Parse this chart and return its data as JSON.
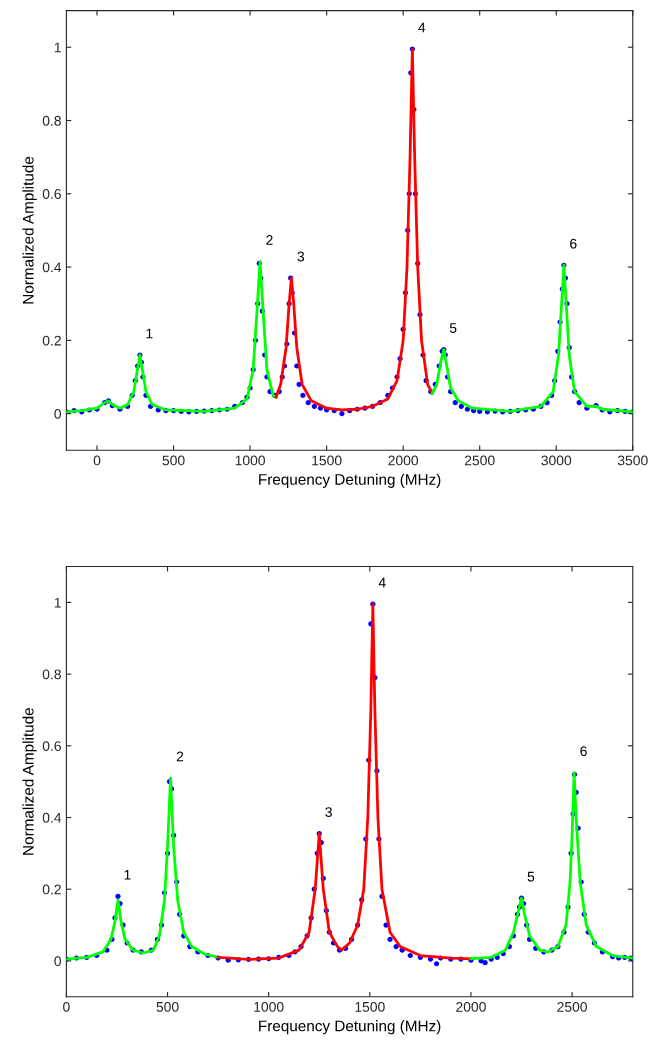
{
  "chart_data": [
    {
      "type": "line",
      "xlabel": "Frequency Detuning (MHz)",
      "ylabel": "Normalized Amplitude",
      "xlim": [
        -200,
        3500
      ],
      "ylim": [
        -0.1,
        1.1
      ],
      "xticks": [
        0,
        500,
        1000,
        1500,
        2000,
        2500,
        3000,
        3500
      ],
      "yticks": [
        0,
        0.2,
        0.4,
        0.6,
        0.8,
        1
      ],
      "grid": false,
      "legend": false,
      "series": [
        {
          "type": "scatter",
          "color": "#0000ff",
          "marker": "circle",
          "x": [
            -200,
            -150,
            -100,
            -50,
            0,
            50,
            75,
            100,
            150,
            200,
            230,
            250,
            265,
            280,
            290,
            300,
            320,
            350,
            400,
            450,
            500,
            550,
            600,
            650,
            700,
            750,
            800,
            850,
            900,
            950,
            980,
            1000,
            1020,
            1035,
            1050,
            1060,
            1070,
            1080,
            1095,
            1110,
            1130,
            1160,
            1190,
            1210,
            1225,
            1240,
            1255,
            1265,
            1275,
            1290,
            1305,
            1320,
            1345,
            1380,
            1420,
            1460,
            1500,
            1550,
            1600,
            1650,
            1700,
            1750,
            1800,
            1850,
            1900,
            1930,
            1960,
            1980,
            2000,
            2015,
            2030,
            2040,
            2050,
            2060,
            2070,
            2080,
            2095,
            2110,
            2130,
            2150,
            2180,
            2210,
            2235,
            2255,
            2265,
            2275,
            2290,
            2310,
            2340,
            2380,
            2420,
            2460,
            2500,
            2550,
            2600,
            2650,
            2700,
            2750,
            2800,
            2850,
            2900,
            2940,
            2970,
            2990,
            3010,
            3025,
            3040,
            3050,
            3060,
            3070,
            3085,
            3100,
            3120,
            3150,
            3200,
            3260,
            3300,
            3350,
            3400,
            3450,
            3500
          ],
          "values": [
            0.005,
            0.008,
            0.005,
            0.01,
            0.012,
            0.03,
            0.035,
            0.022,
            0.012,
            0.02,
            0.05,
            0.09,
            0.13,
            0.16,
            0.14,
            0.1,
            0.05,
            0.02,
            0.01,
            0.008,
            0.008,
            0.006,
            0.005,
            0.006,
            0.007,
            0.008,
            0.01,
            0.012,
            0.02,
            0.03,
            0.045,
            0.07,
            0.12,
            0.2,
            0.3,
            0.41,
            0.37,
            0.28,
            0.16,
            0.1,
            0.06,
            0.05,
            0.06,
            0.1,
            0.13,
            0.19,
            0.3,
            0.37,
            0.33,
            0.22,
            0.13,
            0.08,
            0.05,
            0.03,
            0.02,
            0.015,
            0.01,
            0.008,
            0.0,
            0.008,
            0.012,
            0.015,
            0.02,
            0.03,
            0.05,
            0.07,
            0.1,
            0.15,
            0.23,
            0.33,
            0.5,
            0.6,
            0.93,
            0.995,
            0.83,
            0.6,
            0.41,
            0.27,
            0.16,
            0.09,
            0.06,
            0.08,
            0.13,
            0.17,
            0.175,
            0.16,
            0.1,
            0.06,
            0.03,
            0.02,
            0.012,
            0.008,
            0.006,
            0.005,
            0.007,
            0.005,
            0.006,
            0.008,
            0.01,
            0.012,
            0.02,
            0.03,
            0.05,
            0.09,
            0.17,
            0.25,
            0.34,
            0.405,
            0.37,
            0.3,
            0.18,
            0.1,
            0.06,
            0.03,
            0.015,
            0.022,
            0.01,
            0.005,
            0.008,
            0.006,
            0.005
          ]
        },
        {
          "color": "#00ff00",
          "x": [
            -200,
            -100,
            0,
            50,
            75,
            100,
            150,
            200,
            240,
            260,
            280,
            300,
            320,
            360,
            450,
            700,
            900,
            980,
            1020,
            1045,
            1065,
            1085,
            1110,
            1150,
            1170
          ],
          "values": [
            0.005,
            0.008,
            0.015,
            0.03,
            0.035,
            0.025,
            0.015,
            0.025,
            0.06,
            0.11,
            0.16,
            0.11,
            0.06,
            0.025,
            0.01,
            0.006,
            0.015,
            0.04,
            0.12,
            0.28,
            0.415,
            0.28,
            0.12,
            0.05,
            0.045
          ]
        },
        {
          "color": "#ff0000",
          "x": [
            1170,
            1200,
            1235,
            1255,
            1270,
            1285,
            1305,
            1340,
            1400,
            1500,
            1600,
            1700,
            1800,
            1900,
            1960,
            2000,
            2025,
            2045,
            2060,
            2075,
            2095,
            2120,
            2160,
            2190
          ],
          "values": [
            0.045,
            0.08,
            0.18,
            0.3,
            0.37,
            0.3,
            0.18,
            0.08,
            0.035,
            0.015,
            0.01,
            0.012,
            0.02,
            0.04,
            0.09,
            0.2,
            0.4,
            0.7,
            0.995,
            0.7,
            0.4,
            0.2,
            0.08,
            0.055
          ]
        },
        {
          "color": "#00ff00",
          "x": [
            2190,
            2220,
            2245,
            2265,
            2285,
            2310,
            2360,
            2450,
            2700,
            2900,
            2980,
            3015,
            3035,
            3050,
            3065,
            3085,
            3120,
            3200,
            3260,
            3300,
            3500
          ],
          "values": [
            0.055,
            0.08,
            0.14,
            0.175,
            0.13,
            0.07,
            0.035,
            0.015,
            0.006,
            0.02,
            0.06,
            0.16,
            0.3,
            0.405,
            0.3,
            0.16,
            0.06,
            0.02,
            0.02,
            0.012,
            0.005
          ]
        }
      ],
      "annotations": [
        {
          "text": "1",
          "x": 280,
          "y": 0.16
        },
        {
          "text": "2",
          "x": 1065,
          "y": 0.415
        },
        {
          "text": "3",
          "x": 1270,
          "y": 0.37
        },
        {
          "text": "4",
          "x": 2060,
          "y": 0.995
        },
        {
          "text": "5",
          "x": 2265,
          "y": 0.175
        },
        {
          "text": "6",
          "x": 3050,
          "y": 0.405
        }
      ]
    },
    {
      "type": "line",
      "xlabel": "Frequency Detuning (MHz)",
      "ylabel": "Normalized Amplitude",
      "xlim": [
        0,
        2800
      ],
      "ylim": [
        -0.1,
        1.1
      ],
      "xticks": [
        0,
        500,
        1000,
        1500,
        2000,
        2500
      ],
      "yticks": [
        0,
        0.2,
        0.4,
        0.6,
        0.8,
        1
      ],
      "grid": false,
      "legend": false,
      "series": [
        {
          "type": "scatter",
          "color": "#0000ff",
          "marker": "circle",
          "x": [
            0,
            50,
            100,
            150,
            200,
            225,
            240,
            255,
            265,
            280,
            300,
            330,
            370,
            420,
            450,
            470,
            485,
            500,
            510,
            520,
            530,
            545,
            560,
            580,
            610,
            650,
            700,
            750,
            800,
            850,
            900,
            950,
            1000,
            1050,
            1100,
            1130,
            1160,
            1190,
            1210,
            1225,
            1240,
            1250,
            1260,
            1270,
            1285,
            1300,
            1320,
            1350,
            1380,
            1410,
            1440,
            1460,
            1480,
            1495,
            1505,
            1515,
            1525,
            1535,
            1545,
            1560,
            1580,
            1600,
            1630,
            1660,
            1700,
            1750,
            1800,
            1830,
            1850,
            1900,
            1950,
            2000,
            2050,
            2070,
            2100,
            2130,
            2160,
            2190,
            2210,
            2230,
            2240,
            2250,
            2260,
            2275,
            2290,
            2320,
            2360,
            2400,
            2430,
            2460,
            2480,
            2495,
            2505,
            2512,
            2520,
            2530,
            2545,
            2560,
            2580,
            2610,
            2650,
            2700,
            2730,
            2760,
            2790,
            2800
          ],
          "values": [
            0.005,
            0.008,
            0.01,
            0.015,
            0.03,
            0.06,
            0.12,
            0.18,
            0.16,
            0.1,
            0.05,
            0.03,
            0.025,
            0.03,
            0.06,
            0.1,
            0.19,
            0.3,
            0.5,
            0.48,
            0.35,
            0.22,
            0.13,
            0.07,
            0.04,
            0.025,
            0.015,
            0.008,
            0.002,
            0.003,
            0.004,
            0.005,
            0.006,
            0.01,
            0.015,
            0.025,
            0.04,
            0.07,
            0.12,
            0.2,
            0.3,
            0.355,
            0.33,
            0.23,
            0.14,
            0.08,
            0.05,
            0.03,
            0.035,
            0.06,
            0.1,
            0.17,
            0.34,
            0.56,
            0.94,
            0.995,
            0.79,
            0.53,
            0.34,
            0.18,
            0.1,
            0.06,
            0.04,
            0.03,
            0.015,
            0.01,
            0.005,
            -0.008,
            0.008,
            0.005,
            0.005,
            0.002,
            0.0,
            -0.005,
            0.005,
            0.01,
            0.02,
            0.04,
            0.07,
            0.13,
            0.15,
            0.175,
            0.16,
            0.1,
            0.06,
            0.035,
            0.025,
            0.03,
            0.04,
            0.08,
            0.15,
            0.3,
            0.41,
            0.52,
            0.47,
            0.37,
            0.22,
            0.13,
            0.08,
            0.05,
            0.025,
            0.012,
            0.008,
            0.01,
            0.008,
            0.005
          ]
        },
        {
          "color": "#00ff00",
          "x": [
            0,
            100,
            180,
            220,
            240,
            255,
            270,
            290,
            330,
            380,
            430,
            460,
            485,
            500,
            515,
            530,
            550,
            580,
            620,
            680,
            750
          ],
          "values": [
            0.005,
            0.01,
            0.025,
            0.06,
            0.11,
            0.17,
            0.11,
            0.06,
            0.03,
            0.022,
            0.03,
            0.07,
            0.17,
            0.32,
            0.51,
            0.32,
            0.17,
            0.08,
            0.04,
            0.02,
            0.01
          ]
        },
        {
          "color": "#ff0000",
          "x": [
            750,
            900,
            1050,
            1150,
            1200,
            1230,
            1250,
            1270,
            1300,
            1340,
            1360,
            1400,
            1440,
            1470,
            1490,
            1505,
            1515,
            1525,
            1540,
            1560,
            1600,
            1650,
            1750,
            1900,
            2000
          ],
          "values": [
            0.01,
            0.004,
            0.008,
            0.03,
            0.08,
            0.2,
            0.355,
            0.2,
            0.08,
            0.04,
            0.03,
            0.05,
            0.1,
            0.2,
            0.4,
            0.7,
            0.995,
            0.7,
            0.4,
            0.2,
            0.08,
            0.04,
            0.015,
            0.008,
            0.006
          ]
        },
        {
          "color": "#00ff00",
          "x": [
            2000,
            2100,
            2170,
            2210,
            2235,
            2250,
            2265,
            2290,
            2340,
            2380,
            2430,
            2470,
            2490,
            2500,
            2510,
            2520,
            2540,
            2570,
            2620,
            2700,
            2800
          ],
          "values": [
            0.006,
            0.01,
            0.03,
            0.08,
            0.14,
            0.175,
            0.13,
            0.07,
            0.03,
            0.025,
            0.04,
            0.1,
            0.22,
            0.35,
            0.525,
            0.4,
            0.22,
            0.1,
            0.04,
            0.015,
            0.008
          ]
        }
      ],
      "annotations": [
        {
          "text": "1",
          "x": 255,
          "y": 0.18
        },
        {
          "text": "2",
          "x": 515,
          "y": 0.51
        },
        {
          "text": "3",
          "x": 1250,
          "y": 0.355
        },
        {
          "text": "4",
          "x": 1515,
          "y": 0.995
        },
        {
          "text": "5",
          "x": 2250,
          "y": 0.175
        },
        {
          "text": "6",
          "x": 2510,
          "y": 0.525
        }
      ]
    }
  ]
}
